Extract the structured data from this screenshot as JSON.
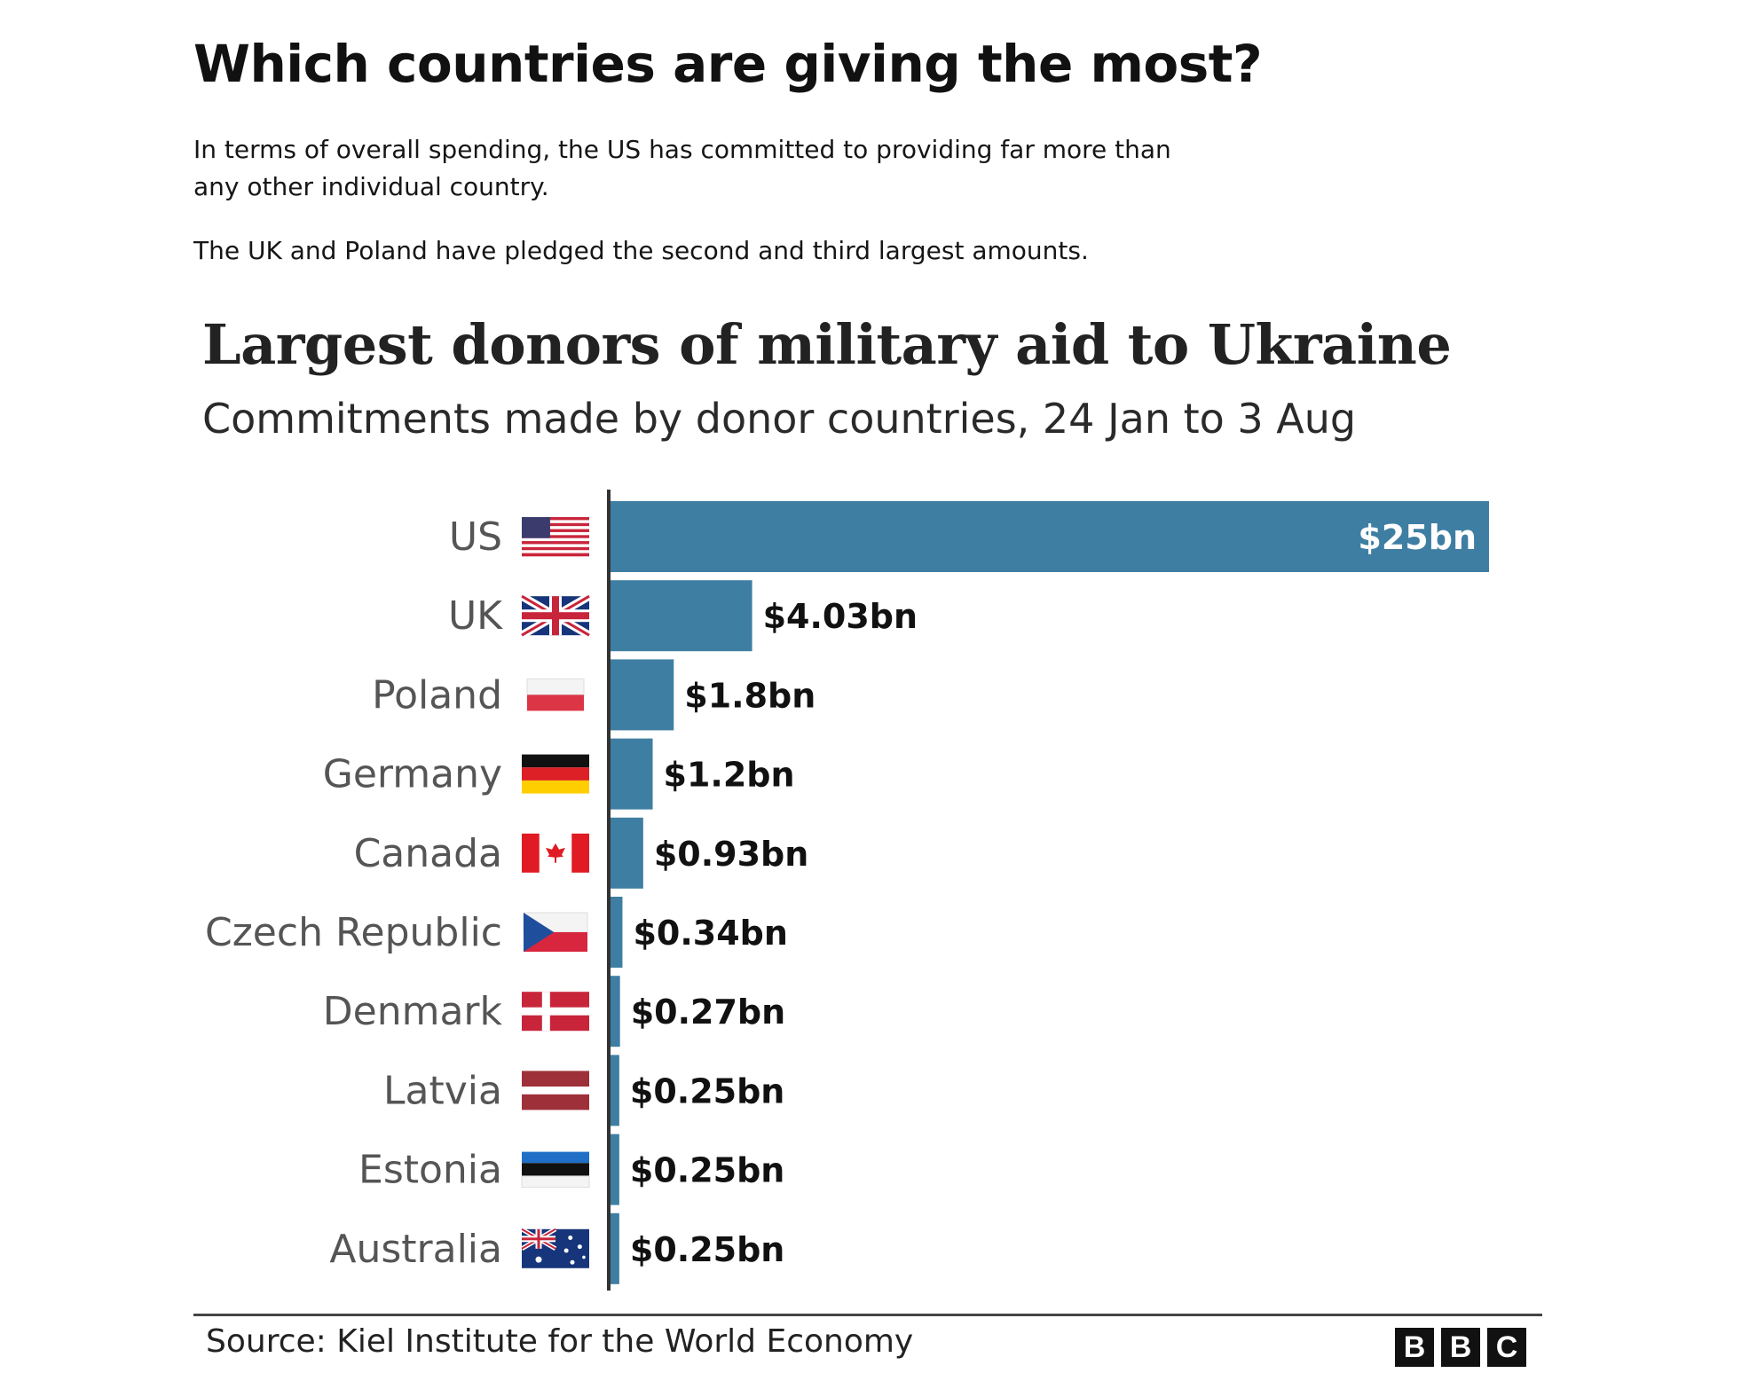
{
  "article": {
    "heading": "Which countries are giving the most?",
    "paragraph1": "In terms of overall spending, the US has committed to providing far more than any other individual country.",
    "paragraph2": "The UK and Poland have pledged the second and third largest amounts."
  },
  "chart_data": {
    "type": "bar",
    "orientation": "horizontal",
    "title": "Largest donors of military aid to Ukraine",
    "subtitle": "Commitments made by donor countries, 24 Jan to 3 Aug",
    "unit": "$bn",
    "categories": [
      "US",
      "UK",
      "Poland",
      "Germany",
      "Canada",
      "Czech Republic",
      "Denmark",
      "Latvia",
      "Estonia",
      "Australia"
    ],
    "values": [
      25,
      4.03,
      1.8,
      1.2,
      0.93,
      0.34,
      0.27,
      0.25,
      0.25,
      0.25
    ],
    "value_labels": [
      "$25bn",
      "$4.03bn",
      "$1.8bn",
      "$1.2bn",
      "$0.93bn",
      "$0.34bn",
      "$0.27bn",
      "$0.25bn",
      "$0.25bn",
      "$0.25bn"
    ],
    "flags": [
      "flag-us-icon",
      "flag-uk-icon",
      "flag-poland-icon",
      "flag-germany-icon",
      "flag-canada-icon",
      "flag-czech-icon",
      "flag-denmark-icon",
      "flag-latvia-icon",
      "flag-estonia-icon",
      "flag-australia-icon"
    ],
    "bar_color": "#3f7ea3",
    "xlim": [
      0,
      25
    ],
    "grid": false,
    "legend": "none"
  },
  "source": "Source: Kiel Institute for the World Economy",
  "logo": [
    "B",
    "B",
    "C"
  ]
}
